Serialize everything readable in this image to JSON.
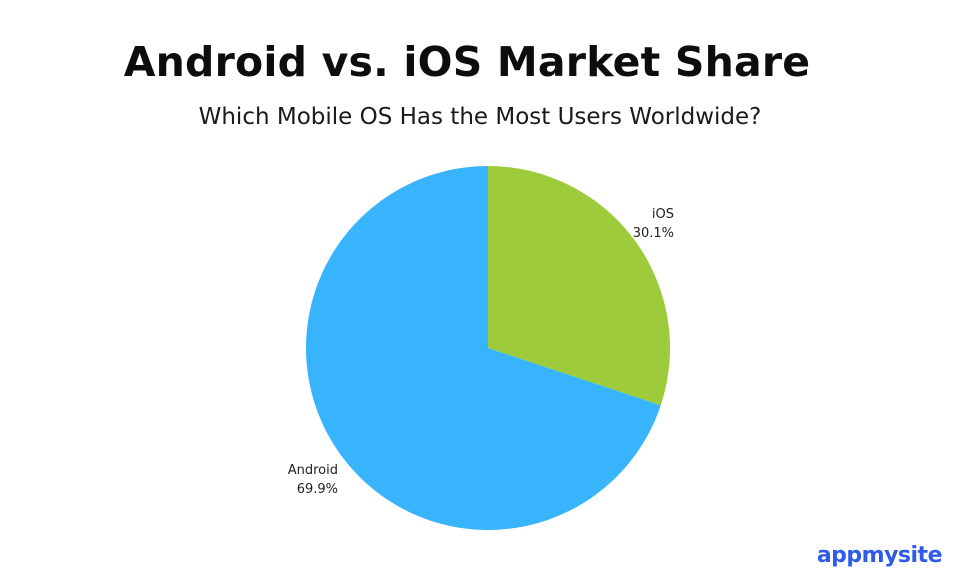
{
  "chart_data": {
    "type": "pie",
    "title": "Android vs. iOS Market Share",
    "subtitle": "Which Mobile OS Has the Most Users Worldwide?",
    "slices": [
      {
        "label": "iOS",
        "value": 30.1,
        "value_label": "30.1%",
        "color": "#9dcb3c"
      },
      {
        "label": "Android",
        "value": 69.9,
        "value_label": "69.9%",
        "color": "#38b4fd"
      }
    ],
    "start_angle": "12 o'clock",
    "direction": "clockwise",
    "legend": "none",
    "label_placement": "outside"
  },
  "brand": {
    "text": "appmysite",
    "color": "#2f5bea"
  }
}
